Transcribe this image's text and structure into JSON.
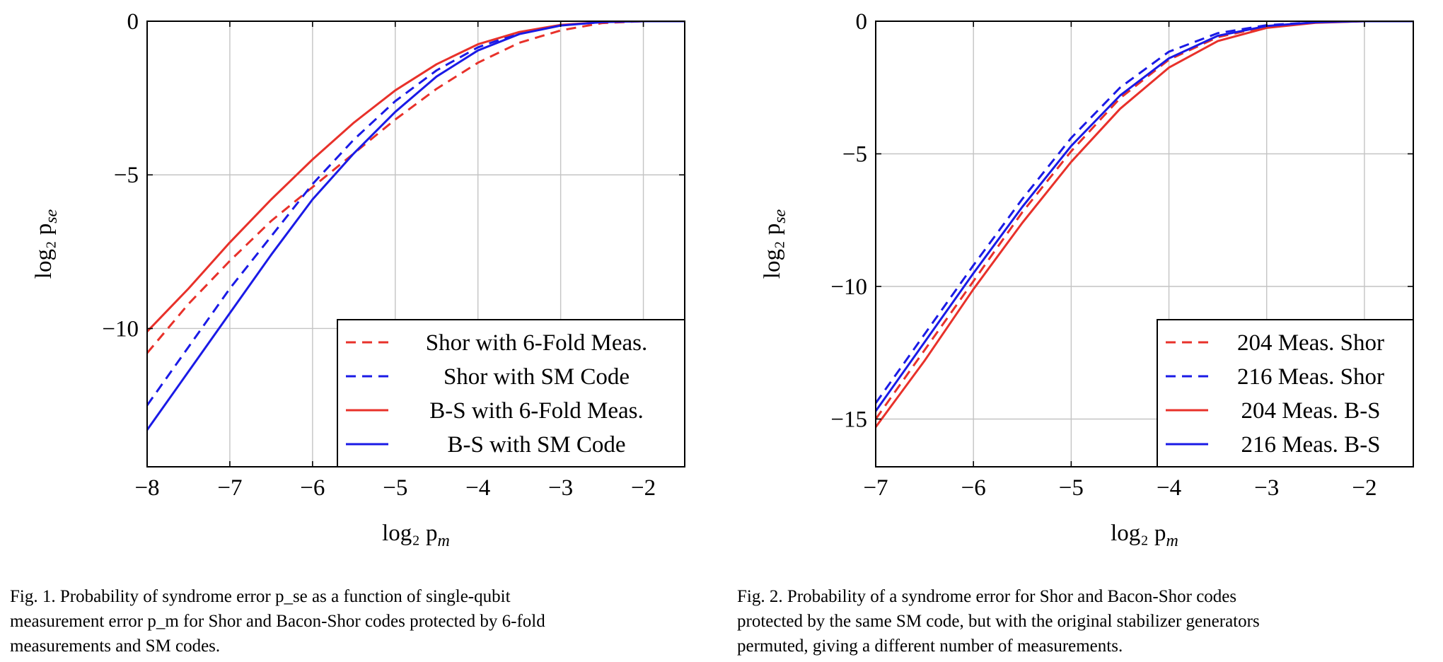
{
  "chart_data": [
    {
      "type": "line",
      "xlabel": "log₂ p",
      "xlabel_sub": "m",
      "ylabel": "log₂ p",
      "ylabel_sub": "se",
      "xlim": [
        -8,
        -1.5
      ],
      "ylim": [
        -14.5,
        0
      ],
      "xticks": [
        -8,
        -7,
        -6,
        -5,
        -4,
        -3,
        -2
      ],
      "yticks": [
        0,
        -5,
        -10
      ],
      "grid": true,
      "legend_position": "bottom-right",
      "series": [
        {
          "name": "Shor with 6-Fold Meas.",
          "color": "#e8312a",
          "dash": true,
          "points": [
            [
              -8,
              -10.8
            ],
            [
              -7.5,
              -9.2
            ],
            [
              -7,
              -7.8
            ],
            [
              -6.5,
              -6.5
            ],
            [
              -6,
              -5.4
            ],
            [
              -5.5,
              -4.3
            ],
            [
              -5,
              -3.2
            ],
            [
              -4.5,
              -2.2
            ],
            [
              -4,
              -1.35
            ],
            [
              -3.5,
              -0.7
            ],
            [
              -3,
              -0.3
            ],
            [
              -2.5,
              -0.06
            ],
            [
              -2,
              0
            ],
            [
              -1.5,
              0
            ]
          ]
        },
        {
          "name": "Shor with SM Code",
          "color": "#1a1ae6",
          "dash": true,
          "points": [
            [
              -8,
              -12.5
            ],
            [
              -7.5,
              -10.6
            ],
            [
              -7,
              -8.7
            ],
            [
              -6.5,
              -7.0
            ],
            [
              -6,
              -5.3
            ],
            [
              -5.5,
              -3.85
            ],
            [
              -5,
              -2.6
            ],
            [
              -4.5,
              -1.6
            ],
            [
              -4,
              -0.85
            ],
            [
              -3.5,
              -0.38
            ],
            [
              -3,
              -0.13
            ],
            [
              -2.5,
              -0.03
            ],
            [
              -2,
              0
            ],
            [
              -1.5,
              0
            ]
          ]
        },
        {
          "name": "B-S with 6-Fold Meas.",
          "color": "#e8312a",
          "dash": false,
          "points": [
            [
              -8,
              -10.1
            ],
            [
              -7.5,
              -8.7
            ],
            [
              -7,
              -7.2
            ],
            [
              -6.5,
              -5.8
            ],
            [
              -6,
              -4.5
            ],
            [
              -5.5,
              -3.3
            ],
            [
              -5,
              -2.25
            ],
            [
              -4.5,
              -1.4
            ],
            [
              -4,
              -0.75
            ],
            [
              -3.5,
              -0.35
            ],
            [
              -3,
              -0.12
            ],
            [
              -2.5,
              -0.03
            ],
            [
              -2,
              0
            ],
            [
              -1.5,
              0
            ]
          ]
        },
        {
          "name": "B-S with SM Code",
          "color": "#1a1ae6",
          "dash": false,
          "points": [
            [
              -8,
              -13.3
            ],
            [
              -7.5,
              -11.4
            ],
            [
              -7,
              -9.5
            ],
            [
              -6.5,
              -7.6
            ],
            [
              -6,
              -5.8
            ],
            [
              -5.5,
              -4.3
            ],
            [
              -5,
              -2.95
            ],
            [
              -4.5,
              -1.8
            ],
            [
              -4,
              -0.95
            ],
            [
              -3.5,
              -0.42
            ],
            [
              -3,
              -0.14
            ],
            [
              -2.5,
              -0.03
            ],
            [
              -2,
              0
            ],
            [
              -1.5,
              0
            ]
          ]
        }
      ]
    },
    {
      "type": "line",
      "xlabel": "log₂ p",
      "xlabel_sub": "m",
      "ylabel": "log₂ p",
      "ylabel_sub": "se",
      "xlim": [
        -7,
        -1.5
      ],
      "ylim": [
        -16.8,
        0
      ],
      "xticks": [
        -7,
        -6,
        -5,
        -4,
        -3,
        -2
      ],
      "yticks": [
        0,
        -5,
        -10,
        -15
      ],
      "grid": true,
      "legend_position": "bottom-right",
      "series": [
        {
          "name": "204 Meas. Shor",
          "color": "#e8312a",
          "dash": true,
          "points": [
            [
              -7,
              -15.0
            ],
            [
              -6.5,
              -12.4
            ],
            [
              -6,
              -9.8
            ],
            [
              -5.5,
              -7.2
            ],
            [
              -5,
              -4.9
            ],
            [
              -4.5,
              -2.9
            ],
            [
              -4,
              -1.45
            ],
            [
              -3.5,
              -0.6
            ],
            [
              -3,
              -0.2
            ],
            [
              -2.5,
              -0.05
            ],
            [
              -2,
              0
            ],
            [
              -1.5,
              0
            ]
          ]
        },
        {
          "name": "216 Meas. Shor",
          "color": "#1a1ae6",
          "dash": true,
          "points": [
            [
              -7,
              -14.4
            ],
            [
              -6.5,
              -11.8
            ],
            [
              -6,
              -9.2
            ],
            [
              -5.5,
              -6.7
            ],
            [
              -5,
              -4.4
            ],
            [
              -4.5,
              -2.5
            ],
            [
              -4,
              -1.15
            ],
            [
              -3.5,
              -0.45
            ],
            [
              -3,
              -0.15
            ],
            [
              -2.5,
              -0.04
            ],
            [
              -2,
              0
            ],
            [
              -1.5,
              0
            ]
          ]
        },
        {
          "name": "204 Meas. B-S",
          "color": "#e8312a",
          "dash": false,
          "points": [
            [
              -7,
              -15.3
            ],
            [
              -6.5,
              -12.8
            ],
            [
              -6,
              -10.1
            ],
            [
              -5.5,
              -7.6
            ],
            [
              -5,
              -5.3
            ],
            [
              -4.5,
              -3.3
            ],
            [
              -4,
              -1.75
            ],
            [
              -3.5,
              -0.75
            ],
            [
              -3,
              -0.25
            ],
            [
              -2.5,
              -0.06
            ],
            [
              -2,
              0
            ],
            [
              -1.5,
              0
            ]
          ]
        },
        {
          "name": "216 Meas. B-S",
          "color": "#1a1ae6",
          "dash": false,
          "points": [
            [
              -7,
              -14.7
            ],
            [
              -6.5,
              -12.1
            ],
            [
              -6,
              -9.5
            ],
            [
              -5.5,
              -7.0
            ],
            [
              -5,
              -4.7
            ],
            [
              -4.5,
              -2.8
            ],
            [
              -4,
              -1.4
            ],
            [
              -3.5,
              -0.55
            ],
            [
              -3,
              -0.18
            ],
            [
              -2.5,
              -0.04
            ],
            [
              -2,
              0
            ],
            [
              -1.5,
              0
            ]
          ]
        }
      ]
    }
  ],
  "captions": [
    {
      "lines": [
        "Fig. 1.  Probability of syndrome error p_se as a function of single-qubit",
        "measurement error p_m for Shor and Bacon-Shor codes protected by 6-fold",
        "measurements and SM codes."
      ]
    },
    {
      "lines": [
        "Fig. 2.  Probability of a syndrome error for Shor and Bacon-Shor codes",
        "protected by the same SM code, but with the original stabilizer generators",
        "permuted, giving a different number of measurements."
      ]
    }
  ]
}
